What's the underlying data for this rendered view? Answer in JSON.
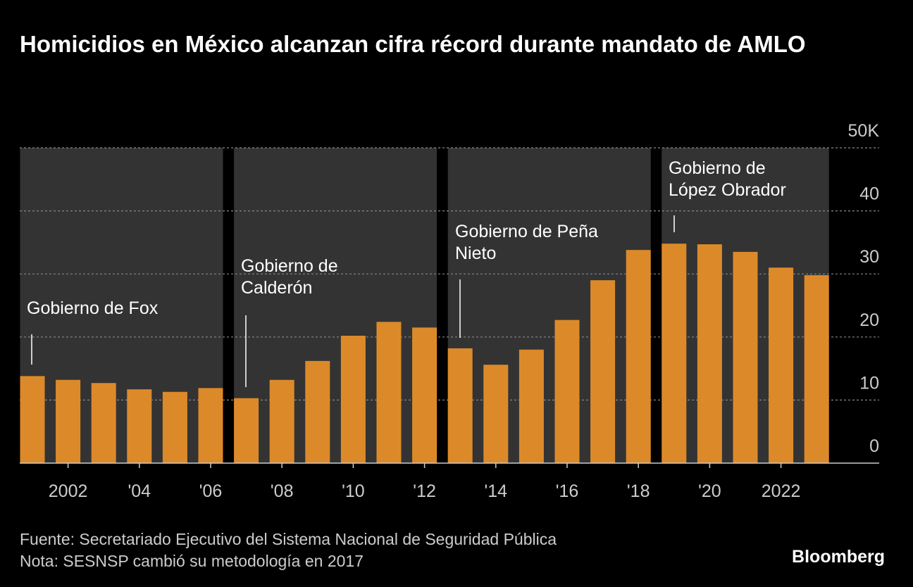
{
  "chart_data": {
    "type": "bar",
    "title": "Homicidios en México alcanzan cifra récord durante mandato de AMLO",
    "categories": [
      null,
      "2002",
      null,
      "'04",
      null,
      "'06",
      null,
      "'08",
      null,
      "'10",
      null,
      "'12",
      null,
      "'14",
      null,
      "'16",
      null,
      "'18",
      null,
      "'20",
      null,
      "2022",
      null
    ],
    "values": [
      13.8,
      13.2,
      12.7,
      11.7,
      11.3,
      11.9,
      10.3,
      13.2,
      16.2,
      20.2,
      22.4,
      21.5,
      18.2,
      15.6,
      18.0,
      22.7,
      29.0,
      33.8,
      34.8,
      34.7,
      33.5,
      31.0,
      29.8
    ],
    "color": "#dc8a29",
    "ylim": [
      0,
      50
    ],
    "yticks": [
      0,
      10,
      20,
      30,
      40,
      {
        "value": 50,
        "label": "50K"
      }
    ],
    "grid": true,
    "annotations": [
      {
        "lines": [
          "Gobierno de Fox"
        ]
      },
      {
        "lines": [
          "Gobierno de",
          "Calderón"
        ]
      },
      {
        "lines": [
          "Gobierno de Peña",
          "Nieto"
        ]
      },
      {
        "lines": [
          "Gobierno de",
          "López Obrador"
        ]
      }
    ],
    "source": "Fuente: Secretariado Ejecutivo del Sistema Nacional de Seguridad Pública",
    "note": "Nota: SESNSP cambió su metodología en 2017",
    "credit": "Bloomberg"
  }
}
